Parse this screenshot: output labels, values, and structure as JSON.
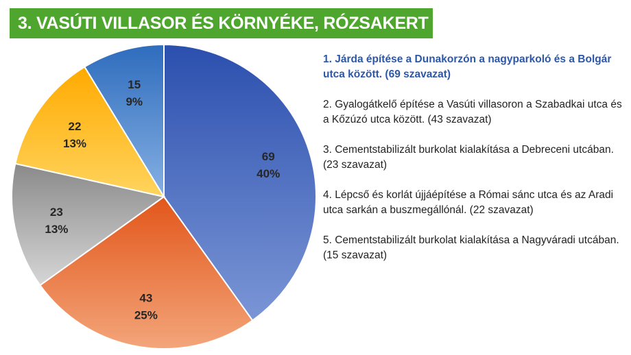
{
  "title": "3. VASÚTI VILLASOR ÉS KÖRNYÉKE, RÓZSAKERT",
  "colors": {
    "banner": "#4fa62e",
    "slice_1": "#3b62c0",
    "slice_2": "#ec7333",
    "slice_3": "#a9a9a9",
    "slice_4": "#ffbb22",
    "slice_5": "#4a86cf",
    "highlight_text": "#2d57a8"
  },
  "chart_data": {
    "type": "pie",
    "title": "3. VASÚTI VILLASOR ÉS KÖRNYÉKE, RÓZSAKERT",
    "slices": [
      {
        "value": 69,
        "percent_label": "40%"
      },
      {
        "value": 43,
        "percent_label": "25%"
      },
      {
        "value": 23,
        "percent_label": "13%"
      },
      {
        "value": 22,
        "percent_label": "13%"
      },
      {
        "value": 15,
        "percent_label": "9%"
      }
    ],
    "legend_placement": "right"
  },
  "legend": [
    "1. Járda építése a Dunakorzón a nagyparkoló és a Bolgár utca között. (69 szavazat)",
    "2. Gyalogátkelő építése a Vasúti villasoron a Szabadkai utca és a Kőzúzó utca között. (43 szavazat)",
    "3. Cementstabilizált burkolat kialakítása a Debreceni utcában. (23 szavazat)",
    "4. Lépcső és korlát újjáépítése a Római sánc utca és az Aradi utca sarkán a buszmegállónál. (22 szavazat)",
    "5. Cementstabilizált burkolat kialakítása a Nagyváradi utcában. (15 szavazat)"
  ]
}
